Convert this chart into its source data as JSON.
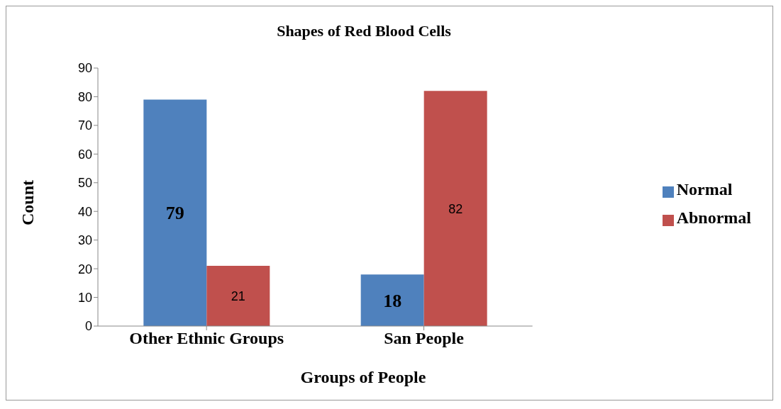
{
  "chart_data": {
    "type": "bar",
    "title": "Shapes of Red Blood Cells",
    "xlabel": "Groups of People",
    "ylabel": "Count",
    "categories": [
      "Other Ethnic Groups",
      "San People"
    ],
    "series": [
      {
        "name": "Normal",
        "color": "#4f81bd",
        "values": [
          79,
          18
        ]
      },
      {
        "name": "Abnormal",
        "color": "#c0504d",
        "values": [
          21,
          82
        ]
      }
    ],
    "ylim": [
      0,
      90
    ],
    "yticks": [
      0,
      10,
      20,
      30,
      40,
      50,
      60,
      70,
      80,
      90
    ],
    "grid": false,
    "legend": "right",
    "data_labels": true
  }
}
